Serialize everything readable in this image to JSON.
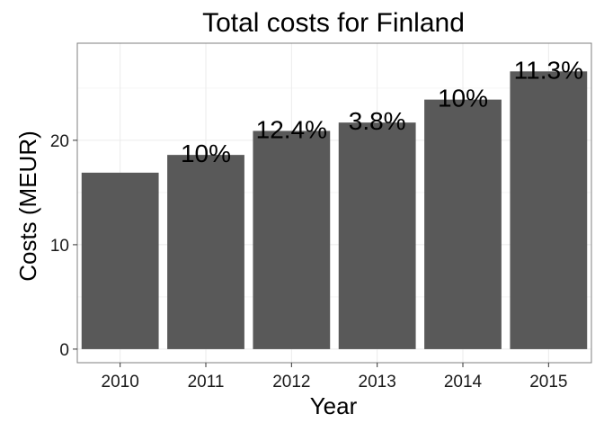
{
  "chart_data": {
    "type": "bar",
    "title": "Total costs for Finland",
    "xlabel": "Year",
    "ylabel": "Costs (MEUR)",
    "categories": [
      "2010",
      "2011",
      "2012",
      "2013",
      "2014",
      "2015"
    ],
    "values": [
      16.9,
      18.6,
      20.9,
      21.7,
      23.9,
      26.6
    ],
    "labels": [
      "",
      "10%",
      "12.4%",
      "3.8%",
      "10%",
      "11.3%"
    ],
    "ylim": [
      -1.3,
      29.3
    ],
    "yticks": [
      0,
      10,
      20
    ],
    "grid": true,
    "bar_color": "#595959"
  }
}
